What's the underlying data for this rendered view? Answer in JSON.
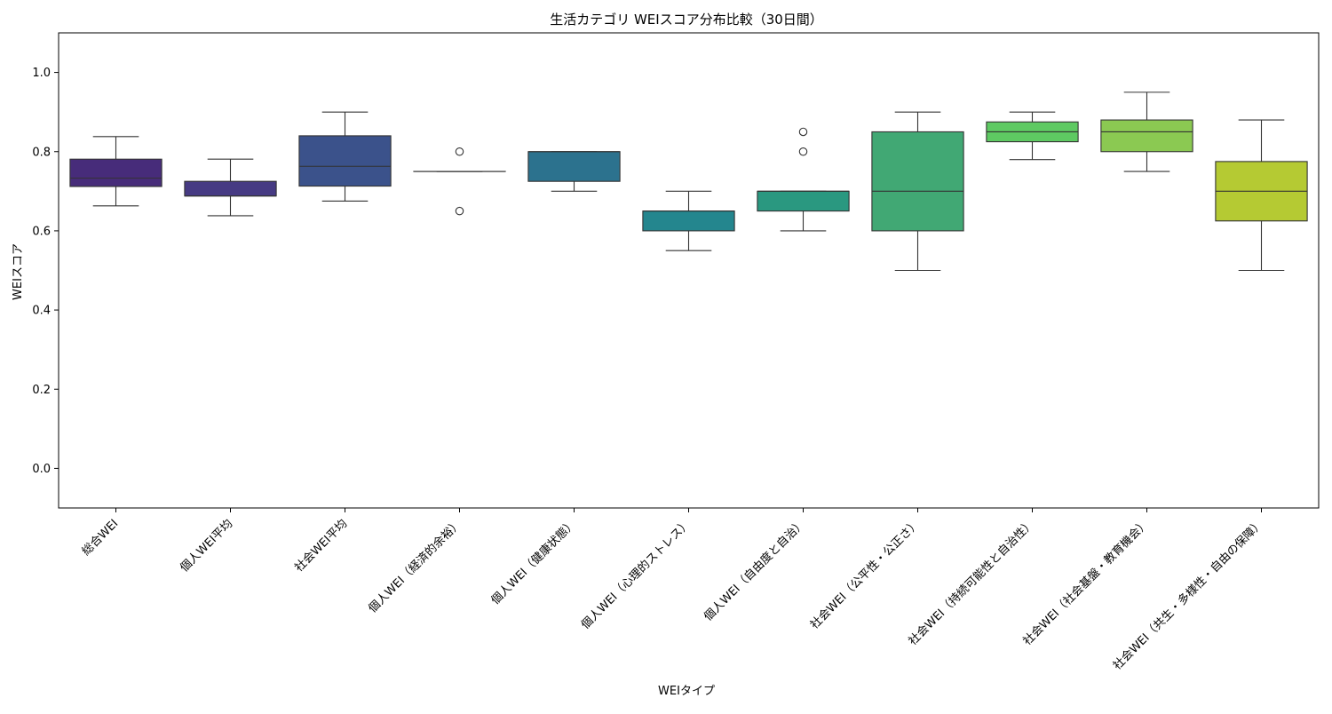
{
  "chart_data": {
    "type": "box",
    "title": "生活カテゴリ WEIスコア分布比較（30日間）",
    "xlabel": "WEIタイプ",
    "ylabel": "WEIスコア",
    "ylim": [
      -0.1,
      1.1
    ],
    "yticks": [
      "0.0",
      "0.2",
      "0.4",
      "0.6",
      "0.8",
      "1.0"
    ],
    "grid": false,
    "legend": "none",
    "categories": [
      "総合WEI",
      "個人WEI平均",
      "社会WEI平均",
      "個人WEI（経済的余裕）",
      "個人WEI（健康状態）",
      "個人WEI（心理的ストレス）",
      "個人WEI（自由度と自治）",
      "社会WEI（公平性・公正さ）",
      "社会WEI（持続可能性と自治性）",
      "社会WEI（社会基盤・教育機会）",
      "社会WEI（共生・多様性・自由の保障）"
    ],
    "boxes": [
      {
        "whisker_low": 0.663,
        "q1": 0.712,
        "median": 0.733,
        "q3": 0.781,
        "whisker_high": 0.838,
        "outliers": [],
        "color": "#472c7a"
      },
      {
        "whisker_low": 0.638,
        "q1": 0.688,
        "median": 0.688,
        "q3": 0.725,
        "whisker_high": 0.781,
        "outliers": [],
        "color": "#463a83"
      },
      {
        "whisker_low": 0.675,
        "q1": 0.713,
        "median": 0.763,
        "q3": 0.84,
        "whisker_high": 0.9,
        "outliers": [],
        "color": "#3b528b"
      },
      {
        "whisker_low": 0.75,
        "q1": 0.75,
        "median": 0.75,
        "q3": 0.75,
        "whisker_high": 0.75,
        "outliers": [
          0.8,
          0.65
        ],
        "color": "#2f6b8e"
      },
      {
        "whisker_low": 0.7,
        "q1": 0.725,
        "median": 0.8,
        "q3": 0.8,
        "whisker_high": 0.8,
        "outliers": [],
        "color": "#2c728e"
      },
      {
        "whisker_low": 0.55,
        "q1": 0.6,
        "median": 0.65,
        "q3": 0.65,
        "whisker_high": 0.7,
        "outliers": [],
        "color": "#24868e"
      },
      {
        "whisker_low": 0.6,
        "q1": 0.65,
        "median": 0.7,
        "q3": 0.7,
        "whisker_high": 0.7,
        "outliers": [
          0.8,
          0.85
        ],
        "color": "#2a9880"
      },
      {
        "whisker_low": 0.5,
        "q1": 0.6,
        "median": 0.7,
        "q3": 0.85,
        "whisker_high": 0.9,
        "outliers": [],
        "color": "#41a874"
      },
      {
        "whisker_low": 0.78,
        "q1": 0.825,
        "median": 0.85,
        "q3": 0.875,
        "whisker_high": 0.9,
        "outliers": [],
        "color": "#5ec962"
      },
      {
        "whisker_low": 0.75,
        "q1": 0.8,
        "median": 0.85,
        "q3": 0.88,
        "whisker_high": 0.95,
        "outliers": [],
        "color": "#8bc952"
      },
      {
        "whisker_low": 0.5,
        "q1": 0.625,
        "median": 0.7,
        "q3": 0.775,
        "whisker_high": 0.88,
        "outliers": [],
        "color": "#b5ca33"
      }
    ]
  }
}
